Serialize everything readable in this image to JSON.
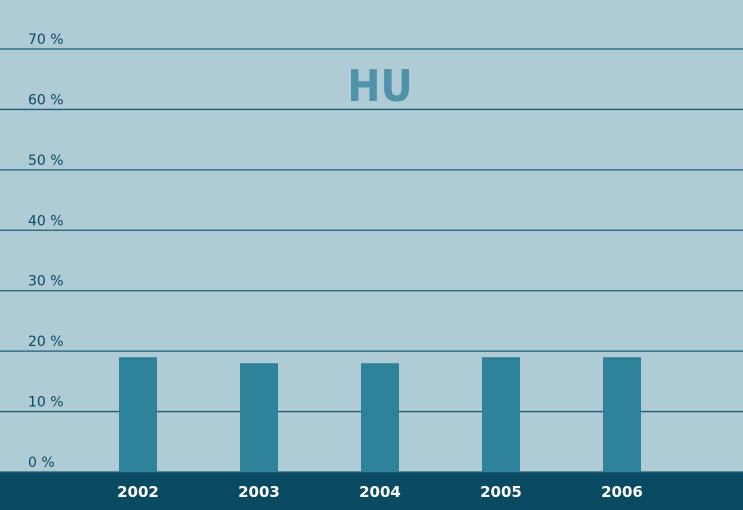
{
  "chart_data": {
    "type": "bar",
    "title": "HU",
    "categories": [
      "2002",
      "2003",
      "2004",
      "2005",
      "2006"
    ],
    "values": [
      19,
      18,
      18,
      19,
      19
    ],
    "color": "#2e8299",
    "ylim": [
      0,
      70
    ],
    "yticks": [
      {
        "value": 0,
        "label": "0 %"
      },
      {
        "value": 10,
        "label": "10 %"
      },
      {
        "value": 20,
        "label": "20 %"
      },
      {
        "value": 30,
        "label": "30 %"
      },
      {
        "value": 40,
        "label": "40 %"
      },
      {
        "value": 50,
        "label": "50 %"
      },
      {
        "value": 60,
        "label": "60 %"
      },
      {
        "value": 70,
        "label": "70 %"
      }
    ],
    "grid": true
  }
}
